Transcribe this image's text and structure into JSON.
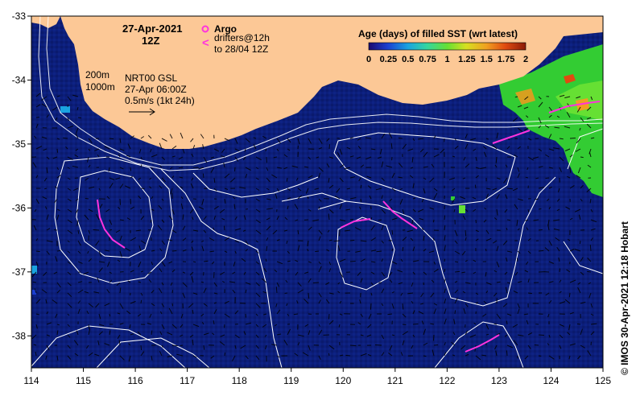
{
  "map": {
    "date": "27-Apr-2021",
    "time": "12Z",
    "legend": {
      "argo_label": "Argo",
      "drifters_label": "drifters@12h",
      "drifters_sub": "to 28/04 12Z"
    },
    "contours": {
      "line1": "200m",
      "line2": "1000m"
    },
    "velocity": {
      "product": "NRT00 GSL",
      "time": "27-Apr 06:00Z",
      "scale": "0.5m/s (1kt 24h)"
    },
    "colorbar": {
      "title": "Age (days) of filled SST (wrt latest)",
      "labels": [
        "0",
        "0.25",
        "0.5",
        "0.75",
        "1",
        "1.25",
        "1.5",
        "1.75",
        "2"
      ]
    },
    "credit": "© IMOS 30-Apr-2021 12:18 Hobart",
    "lon_ticks": [
      "114",
      "115",
      "116",
      "117",
      "118",
      "119",
      "120",
      "121",
      "122",
      "123",
      "124",
      "125"
    ],
    "lat_ticks": [
      "-33",
      "-34",
      "-35",
      "-36",
      "-37",
      "-38"
    ],
    "lon_range": [
      114,
      125
    ],
    "lat_range": [
      -38.5,
      -33
    ],
    "colors": {
      "ocean": "#0c1e7a",
      "land": "#fcc896",
      "contour": "#ffffff",
      "drifter": "#ff33dd",
      "argo": "#ff33dd",
      "recent": "#33cc33"
    }
  }
}
